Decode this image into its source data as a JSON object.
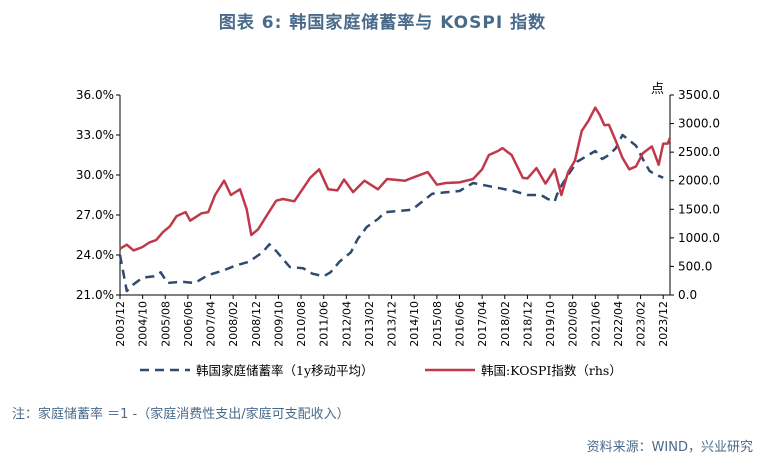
{
  "title": "图表 6:  韩国家庭储蓄率与 KOSPI 指数",
  "note": "注：家庭储蓄率 ＝1 -（家庭消费性支出/家庭可支配收入）",
  "source": "资料来源：WIND，兴业研究",
  "colors": {
    "saving": "#2e4a6e",
    "kospi": "#c0394b",
    "text": "#4a6a8a"
  },
  "chart_data": {
    "type": "line",
    "left_axis": {
      "min": 21,
      "max": 36,
      "ticks": [
        "21.0%",
        "24.0%",
        "27.0%",
        "30.0%",
        "33.0%",
        "36.0%"
      ]
    },
    "right_axis": {
      "min": 0,
      "max": 3500,
      "unit": "点",
      "ticks": [
        "0.0",
        "500.0",
        "1000.0",
        "1500.0",
        "2000.0",
        "2500.0",
        "3000.0",
        "3500.0"
      ]
    },
    "x_range": [
      "2003-12",
      "2024-03"
    ],
    "x_ticks": [
      "2003/12",
      "2004/10",
      "2005/08",
      "2006/06",
      "2007/04",
      "2008/02",
      "2008/12",
      "2009/10",
      "2010/08",
      "2011/06",
      "2012/04",
      "2013/02",
      "2013/12",
      "2014/10",
      "2015/08",
      "2016/06",
      "2017/04",
      "2018/02",
      "2018/12",
      "2019/10",
      "2020/08",
      "2021/06",
      "2022/04",
      "2023/02",
      "2023/12"
    ],
    "legend_position": "bottom",
    "series": [
      {
        "name": "韩国家庭储蓄率（1y移动平均）",
        "axis": "left",
        "style": "dashed",
        "points": [
          [
            "2003-12",
            24.0
          ],
          [
            "2004-03",
            21.3
          ],
          [
            "2004-06",
            21.8
          ],
          [
            "2004-10",
            22.3
          ],
          [
            "2005-03",
            22.4
          ],
          [
            "2005-06",
            22.7
          ],
          [
            "2005-09",
            21.9
          ],
          [
            "2006-03",
            22.0
          ],
          [
            "2006-09",
            21.9
          ],
          [
            "2007-03",
            22.5
          ],
          [
            "2007-09",
            22.8
          ],
          [
            "2008-03",
            23.2
          ],
          [
            "2008-09",
            23.5
          ],
          [
            "2009-03",
            24.2
          ],
          [
            "2009-06",
            24.8
          ],
          [
            "2009-09",
            24.3
          ],
          [
            "2009-12",
            23.7
          ],
          [
            "2010-03",
            23.1
          ],
          [
            "2010-09",
            23.0
          ],
          [
            "2011-01",
            22.6
          ],
          [
            "2011-06",
            22.4
          ],
          [
            "2011-09",
            22.7
          ],
          [
            "2012-01",
            23.5
          ],
          [
            "2012-06",
            24.2
          ],
          [
            "2012-09",
            25.2
          ],
          [
            "2013-01",
            26.1
          ],
          [
            "2013-06",
            26.7
          ],
          [
            "2013-09",
            27.2
          ],
          [
            "2014-03",
            27.3
          ],
          [
            "2014-09",
            27.4
          ],
          [
            "2015-03",
            28.2
          ],
          [
            "2015-06",
            28.6
          ],
          [
            "2015-12",
            28.7
          ],
          [
            "2016-06",
            28.8
          ],
          [
            "2016-09",
            29.1
          ],
          [
            "2016-12",
            29.4
          ],
          [
            "2017-06",
            29.2
          ],
          [
            "2017-12",
            29.0
          ],
          [
            "2018-06",
            28.8
          ],
          [
            "2018-12",
            28.5
          ],
          [
            "2019-06",
            28.5
          ],
          [
            "2019-09",
            28.2
          ],
          [
            "2019-12",
            28.0
          ],
          [
            "2020-01",
            28.5
          ],
          [
            "2020-03",
            29.2
          ],
          [
            "2020-06",
            30.0
          ],
          [
            "2020-10",
            31.0
          ],
          [
            "2021-03",
            31.5
          ],
          [
            "2021-06",
            31.8
          ],
          [
            "2021-09",
            31.2
          ],
          [
            "2021-12",
            31.5
          ],
          [
            "2022-03",
            32.0
          ],
          [
            "2022-06",
            33.0
          ],
          [
            "2022-09",
            32.6
          ],
          [
            "2022-12",
            32.2
          ],
          [
            "2023-03",
            31.2
          ],
          [
            "2023-06",
            30.3
          ],
          [
            "2023-09",
            30.0
          ],
          [
            "2023-12",
            29.8
          ]
        ]
      },
      {
        "name": "韩国:KOSPI指数（rhs）",
        "axis": "right",
        "style": "solid",
        "points": [
          [
            "2003-12",
            810
          ],
          [
            "2004-03",
            880
          ],
          [
            "2004-06",
            780
          ],
          [
            "2004-10",
            840
          ],
          [
            "2005-01",
            920
          ],
          [
            "2005-04",
            960
          ],
          [
            "2005-07",
            1100
          ],
          [
            "2005-10",
            1200
          ],
          [
            "2006-01",
            1380
          ],
          [
            "2006-05",
            1450
          ],
          [
            "2006-07",
            1300
          ],
          [
            "2006-12",
            1430
          ],
          [
            "2007-03",
            1450
          ],
          [
            "2007-06",
            1750
          ],
          [
            "2007-10",
            2000
          ],
          [
            "2008-01",
            1750
          ],
          [
            "2008-05",
            1850
          ],
          [
            "2008-08",
            1500
          ],
          [
            "2008-10",
            1050
          ],
          [
            "2009-01",
            1150
          ],
          [
            "2009-05",
            1400
          ],
          [
            "2009-09",
            1650
          ],
          [
            "2009-12",
            1680
          ],
          [
            "2010-05",
            1640
          ],
          [
            "2010-09",
            1870
          ],
          [
            "2010-12",
            2050
          ],
          [
            "2011-04",
            2200
          ],
          [
            "2011-08",
            1850
          ],
          [
            "2011-12",
            1830
          ],
          [
            "2012-03",
            2020
          ],
          [
            "2012-07",
            1800
          ],
          [
            "2012-12",
            2000
          ],
          [
            "2013-06",
            1850
          ],
          [
            "2013-10",
            2030
          ],
          [
            "2014-06",
            2000
          ],
          [
            "2014-09",
            2050
          ],
          [
            "2015-04",
            2150
          ],
          [
            "2015-08",
            1930
          ],
          [
            "2015-12",
            1960
          ],
          [
            "2016-06",
            1970
          ],
          [
            "2016-12",
            2030
          ],
          [
            "2017-04",
            2200
          ],
          [
            "2017-07",
            2450
          ],
          [
            "2017-11",
            2520
          ],
          [
            "2018-01",
            2570
          ],
          [
            "2018-05",
            2450
          ],
          [
            "2018-10",
            2050
          ],
          [
            "2018-12",
            2040
          ],
          [
            "2019-04",
            2220
          ],
          [
            "2019-08",
            1950
          ],
          [
            "2019-12",
            2200
          ],
          [
            "2020-03",
            1750
          ],
          [
            "2020-06",
            2150
          ],
          [
            "2020-09",
            2350
          ],
          [
            "2020-12",
            2870
          ],
          [
            "2021-03",
            3050
          ],
          [
            "2021-06",
            3280
          ],
          [
            "2021-08",
            3150
          ],
          [
            "2021-10",
            2970
          ],
          [
            "2021-12",
            2980
          ],
          [
            "2022-03",
            2700
          ],
          [
            "2022-06",
            2400
          ],
          [
            "2022-09",
            2200
          ],
          [
            "2022-12",
            2250
          ],
          [
            "2023-03",
            2480
          ],
          [
            "2023-07",
            2600
          ],
          [
            "2023-10",
            2280
          ],
          [
            "2023-12",
            2650
          ],
          [
            "2024-02",
            2650
          ],
          [
            "2024-03",
            2750
          ]
        ]
      }
    ]
  }
}
